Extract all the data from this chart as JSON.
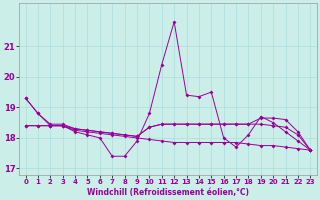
{
  "x": [
    0,
    1,
    2,
    3,
    4,
    5,
    6,
    7,
    8,
    9,
    10,
    11,
    12,
    13,
    14,
    15,
    16,
    17,
    18,
    19,
    20,
    21,
    22,
    23
  ],
  "line1": [
    19.3,
    18.8,
    18.4,
    18.4,
    18.2,
    18.1,
    18.0,
    17.4,
    17.4,
    17.9,
    18.8,
    20.4,
    21.8,
    19.4,
    19.35,
    19.5,
    18.0,
    17.7,
    18.1,
    18.7,
    18.5,
    18.2,
    17.9,
    17.6
  ],
  "line2": [
    19.3,
    18.8,
    18.45,
    18.45,
    18.3,
    18.25,
    18.2,
    18.15,
    18.1,
    18.05,
    18.35,
    18.45,
    18.45,
    18.45,
    18.45,
    18.45,
    18.45,
    18.45,
    18.45,
    18.65,
    18.65,
    18.6,
    18.2,
    17.6
  ],
  "line3": [
    18.4,
    18.4,
    18.4,
    18.4,
    18.25,
    18.2,
    18.15,
    18.1,
    18.05,
    18.0,
    17.95,
    17.9,
    17.85,
    17.85,
    17.85,
    17.85,
    17.85,
    17.85,
    17.8,
    17.75,
    17.75,
    17.7,
    17.65,
    17.6
  ],
  "line4": [
    18.4,
    18.4,
    18.4,
    18.4,
    18.3,
    18.25,
    18.2,
    18.15,
    18.1,
    18.05,
    18.35,
    18.45,
    18.45,
    18.45,
    18.45,
    18.45,
    18.45,
    18.45,
    18.45,
    18.45,
    18.4,
    18.35,
    18.1,
    17.6
  ],
  "line_color": "#990099",
  "bg_color": "#cceee8",
  "grid_color": "#aadddd",
  "xlabel": "Windchill (Refroidissement éolien,°C)",
  "xlim": [
    -0.5,
    23.5
  ],
  "ylim": [
    16.8,
    22.4
  ],
  "yticks": [
    17,
    18,
    19,
    20,
    21
  ],
  "xticks": [
    0,
    1,
    2,
    3,
    4,
    5,
    6,
    7,
    8,
    9,
    10,
    11,
    12,
    13,
    14,
    15,
    16,
    17,
    18,
    19,
    20,
    21,
    22,
    23
  ],
  "marker": "D",
  "markersize": 2,
  "linewidth": 0.7,
  "tick_fontsize": 5.0,
  "xlabel_fontsize": 5.5
}
